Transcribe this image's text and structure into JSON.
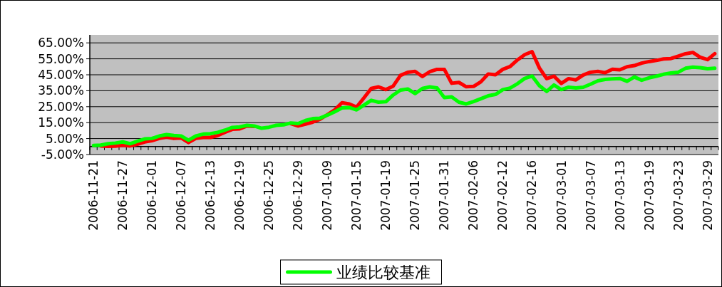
{
  "chart_data": {
    "type": "line",
    "categories": [
      "2006-11-21",
      null,
      null,
      null,
      "2006-11-27",
      null,
      null,
      null,
      "2006-12-01",
      null,
      null,
      null,
      "2006-12-07",
      null,
      null,
      null,
      "2006-12-13",
      null,
      null,
      null,
      "2006-12-19",
      null,
      null,
      null,
      "2006-12-25",
      null,
      null,
      null,
      "2006-12-29",
      null,
      null,
      null,
      "2007-01-09",
      null,
      null,
      null,
      "2007-01-15",
      null,
      null,
      null,
      "2007-01-19",
      null,
      null,
      null,
      "2007-01-25",
      null,
      null,
      null,
      "2007-01-31",
      null,
      null,
      null,
      "2007-02-06",
      null,
      null,
      null,
      "2007-02-12",
      null,
      null,
      null,
      "2007-02-16",
      null,
      null,
      null,
      "2007-03-01",
      null,
      null,
      null,
      "2007-03-07",
      null,
      null,
      null,
      "2007-03-13",
      null,
      null,
      null,
      "2007-03-19",
      null,
      null,
      null,
      "2007-03-23",
      null,
      null,
      null,
      "2007-03-29",
      null
    ],
    "series": [
      {
        "color": "#ff0000",
        "values": [
          null,
          0.4,
          0.1,
          0.2,
          0.9,
          0.4,
          1.4,
          2.9,
          3.7,
          5.1,
          5.9,
          5.1,
          5.4,
          2.5,
          5.1,
          5.7,
          5.7,
          6.9,
          9.0,
          10.8,
          11.1,
          12.9,
          12.6,
          null,
          null,
          null,
          null,
          14.4,
          12.9,
          14.1,
          15.3,
          17.1,
          20.0,
          23.0,
          27.5,
          26.7,
          24.8,
          30.5,
          36.4,
          37.4,
          35.7,
          37.9,
          44.6,
          46.6,
          47.1,
          43.9,
          46.9,
          48.4,
          48.4,
          39.7,
          40.2,
          37.5,
          37.7,
          40.6,
          45.5,
          45.0,
          48.4,
          50.2,
          54.3,
          57.6,
          59.5,
          49.3,
          42.6,
          44.1,
          39.6,
          42.6,
          41.8,
          44.8,
          46.6,
          47.1,
          46.3,
          48.5,
          48.1,
          50.0,
          50.8,
          52.3,
          53.3,
          54.0,
          54.9,
          55.2,
          56.7,
          58.2,
          59.0,
          56.0,
          54.5,
          58.2
        ]
      },
      {
        "name": "业绩比较基准",
        "color": "#00ff00",
        "values": [
          0.7,
          0.9,
          1.8,
          2.2,
          2.9,
          1.8,
          3.3,
          4.8,
          5.1,
          6.6,
          7.5,
          6.9,
          6.6,
          4.0,
          6.6,
          7.8,
          8.1,
          8.9,
          10.3,
          12.0,
          12.3,
          13.3,
          12.9,
          11.5,
          12.1,
          13.3,
          13.6,
          14.8,
          14.4,
          16.3,
          17.5,
          17.8,
          19.7,
          21.8,
          24.2,
          24.5,
          23.0,
          26.0,
          29.0,
          27.8,
          28.1,
          32.3,
          35.4,
          36.1,
          33.2,
          36.4,
          37.4,
          36.7,
          30.7,
          31.2,
          27.8,
          26.7,
          28.2,
          30.0,
          31.8,
          32.7,
          35.7,
          36.7,
          39.4,
          42.7,
          44.2,
          38.2,
          34.6,
          38.6,
          35.7,
          37.2,
          36.7,
          37.2,
          39.1,
          41.2,
          42.1,
          42.4,
          42.7,
          40.9,
          43.6,
          41.6,
          43.1,
          44.1,
          45.3,
          46.1,
          46.6,
          49.1,
          49.8,
          49.5,
          48.8,
          49.1
        ]
      }
    ],
    "ylim": [
      -5,
      70
    ],
    "yticks": [
      {
        "value": -5,
        "label": "-5.00%"
      },
      {
        "value": 5,
        "label": "5.00%"
      },
      {
        "value": 15,
        "label": "15.00%"
      },
      {
        "value": 25,
        "label": "25.00%"
      },
      {
        "value": 35,
        "label": "35.00%"
      },
      {
        "value": 45,
        "label": "45.00%"
      },
      {
        "value": 55,
        "label": "55.00%"
      },
      {
        "value": 65,
        "label": "65.00%"
      }
    ],
    "grid": "y",
    "legend": "bottom",
    "marker": "none",
    "line_style": "solid"
  }
}
